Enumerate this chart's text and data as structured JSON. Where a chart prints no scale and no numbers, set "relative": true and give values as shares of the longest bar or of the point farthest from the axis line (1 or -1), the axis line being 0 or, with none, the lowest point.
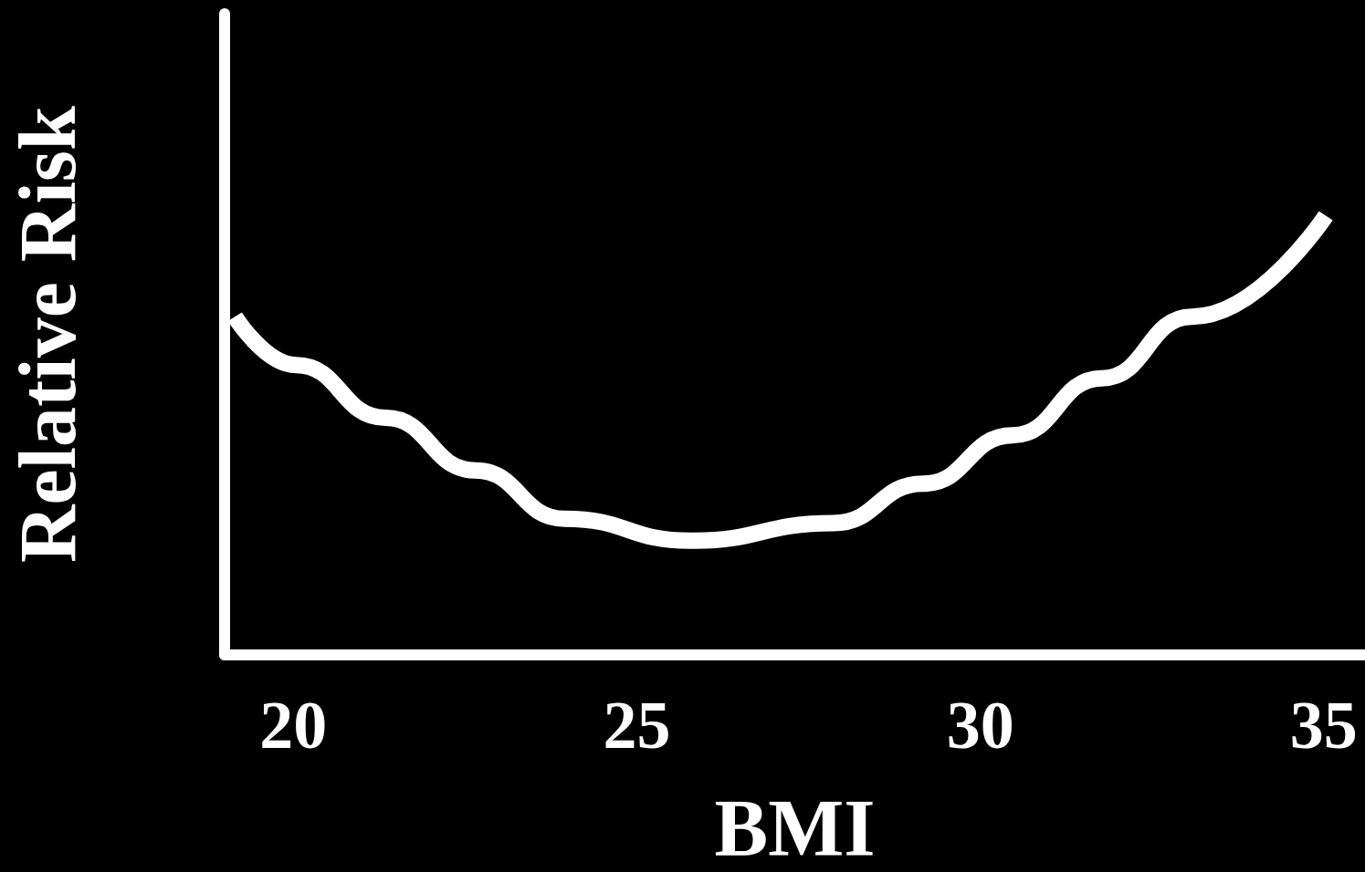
{
  "chart_data": {
    "type": "line",
    "xlabel": "BMI",
    "ylabel": "Relative Risk",
    "relative": true,
    "x": [
      19.15,
      20.04,
      21.34,
      22.65,
      23.95,
      25.78,
      27.86,
      29.17,
      30.47,
      31.77,
      33.08,
      35.03
    ],
    "series": [
      {
        "color": "#ffffff",
        "values": [
          0.77,
          0.66,
          0.54,
          0.42,
          0.31,
          0.26,
          0.3,
          0.39,
          0.5,
          0.63,
          0.77,
          1.0
        ]
      }
    ],
    "xlim": [
      19,
      35.6
    ],
    "xticks": [
      20,
      25,
      30,
      35
    ],
    "grid": false,
    "marker": "none",
    "line_style": "solid"
  }
}
